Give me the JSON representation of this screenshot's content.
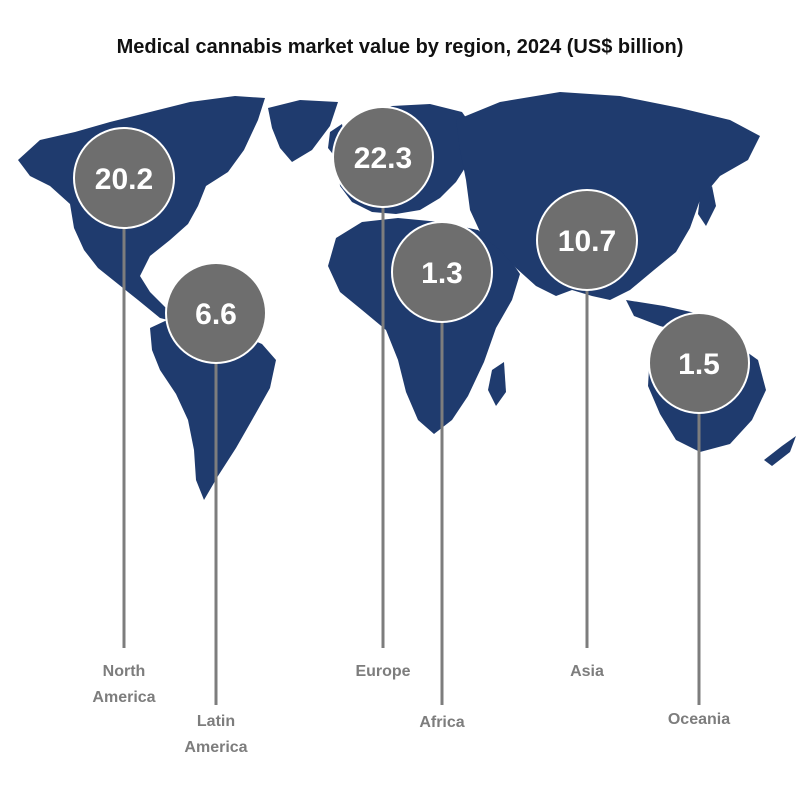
{
  "chart_data": {
    "type": "bubble-map",
    "title": "Medical cannabis market value by region, 2024 (US$ billion)",
    "unit": "US$ billion",
    "map_color": "#1f3b6e",
    "bubble_color": "#6e6e6e",
    "stem_color": "#7d7d7d",
    "label_color": "#7d7d7d",
    "regions": [
      {
        "name": "North America",
        "label_lines": [
          "North",
          "America"
        ],
        "value": 20.2
      },
      {
        "name": "Latin America",
        "label_lines": [
          "Latin",
          "America"
        ],
        "value": 6.6
      },
      {
        "name": "Europe",
        "label_lines": [
          "Europe"
        ],
        "value": 22.3
      },
      {
        "name": "Africa",
        "label_lines": [
          "Africa"
        ],
        "value": 1.3
      },
      {
        "name": "Asia",
        "label_lines": [
          "Asia"
        ],
        "value": 10.7
      },
      {
        "name": "Oceania",
        "label_lines": [
          "Oceania"
        ],
        "value": 1.5
      }
    ]
  }
}
